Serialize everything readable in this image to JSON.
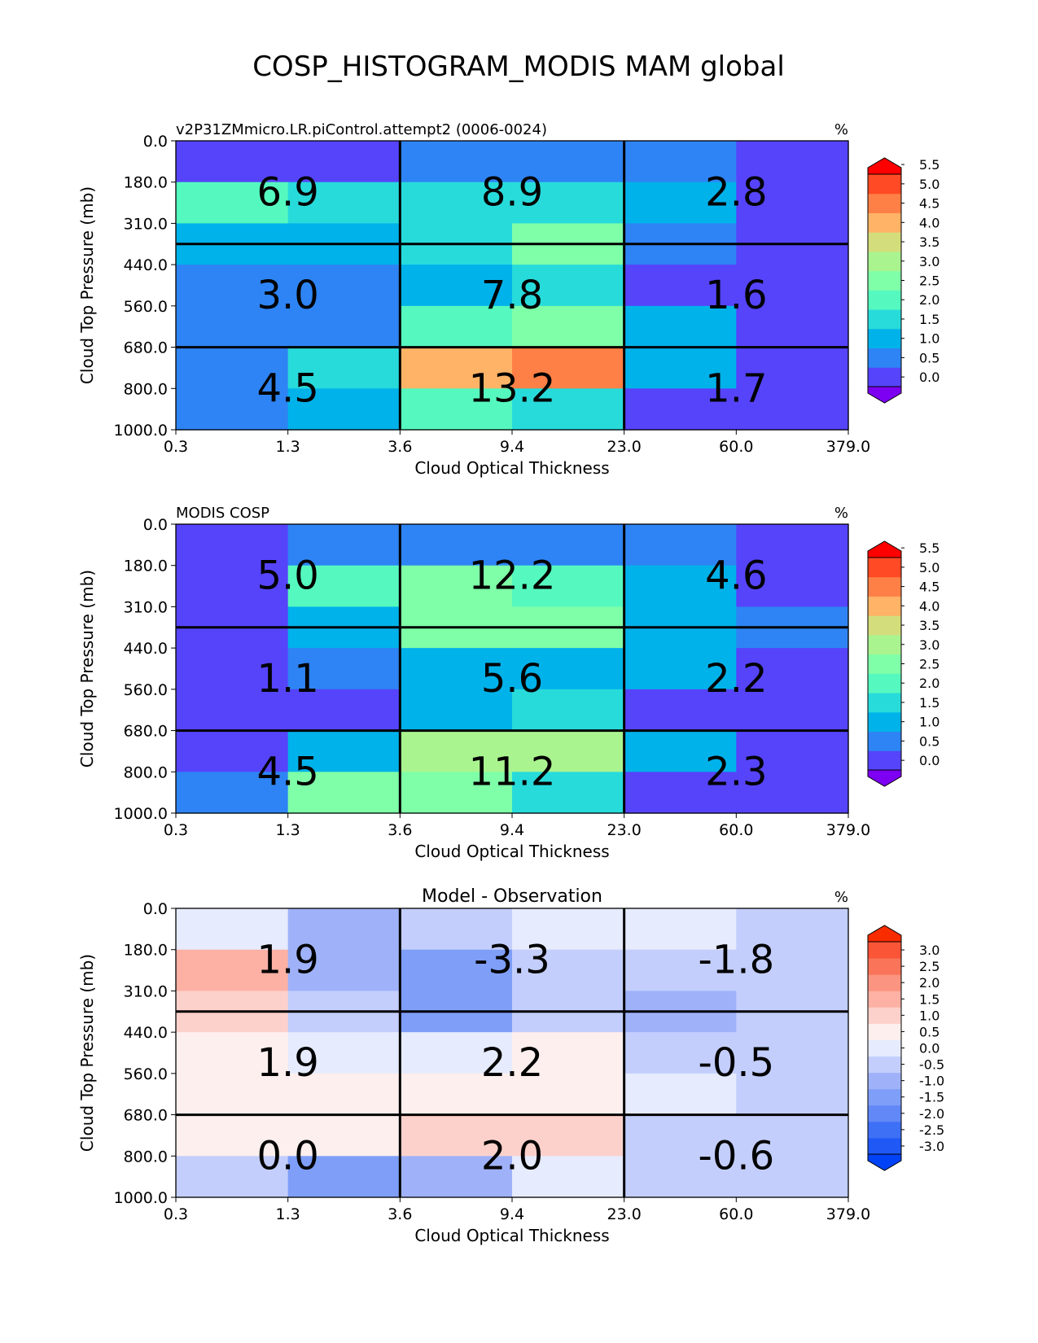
{
  "figure": {
    "title": "COSP_HISTOGRAM_MODIS MAM global"
  },
  "colors": {
    "abs_levels": [
      "#7d00f2",
      "#5644fb",
      "#2e84f4",
      "#00b2ea",
      "#28dbdb",
      "#55f9bf",
      "#7fffa8",
      "#aaf48f",
      "#d4dd7c",
      "#ffb366",
      "#ff8046",
      "#ff4a25",
      "#ff0000"
    ],
    "diff_levels": [
      "#0042f5",
      "#1f58f5",
      "#3e70f6",
      "#6288f7",
      "#7e9ef8",
      "#9fb2f9",
      "#c3cefc",
      "#e6ebfd",
      "#fdefed",
      "#fdd1cb",
      "#fcb1a4",
      "#fb9480",
      "#fa7459",
      "#f95536",
      "#f92c00"
    ]
  },
  "chart_data": [
    {
      "type": "heatmap",
      "name": "model",
      "title_left": "v2P31ZMmicro.LR.piControl.attempt2 (0006-0024)",
      "title_center": "",
      "units": "%",
      "xlabel": "Cloud Optical Thickness",
      "ylabel": "Cloud Top Pressure (mb)",
      "xticks": [
        "0.3",
        "1.3",
        "3.6",
        "9.4",
        "23.0",
        "60.0",
        "379.0"
      ],
      "yticks": [
        "0.0",
        "180.0",
        "310.0",
        "440.0",
        "560.0",
        "680.0",
        "800.0",
        "1000.0"
      ],
      "cells": [
        [
          0.3,
          0.3,
          0.7,
          0.7,
          0.7,
          0.2
        ],
        [
          2.1,
          1.9,
          1.9,
          1.9,
          1.4,
          0.3
        ],
        [
          1.4,
          1.4,
          1.9,
          2.6,
          0.8,
          0.3
        ],
        [
          0.8,
          0.8,
          1.4,
          1.9,
          0.2,
          0.2
        ],
        [
          0.8,
          0.8,
          2.1,
          2.6,
          1.4,
          0.2
        ],
        [
          0.8,
          1.9,
          4.1,
          4.9,
          1.4,
          0.2
        ],
        [
          0.8,
          1.4,
          2.1,
          1.9,
          0.3,
          0.2
        ]
      ],
      "totals": [
        [
          "6.9",
          "8.9",
          "2.8"
        ],
        [
          "3.0",
          "7.8",
          "1.6"
        ],
        [
          "4.5",
          "13.2",
          "1.7"
        ]
      ],
      "colorbar": {
        "palette": "abs",
        "labels": [
          "0.0",
          "0.5",
          "1.0",
          "1.5",
          "2.0",
          "2.5",
          "3.0",
          "3.5",
          "4.0",
          "4.5",
          "5.0",
          "5.5"
        ],
        "extend": "both"
      }
    },
    {
      "type": "heatmap",
      "name": "observation",
      "title_left": "MODIS COSP",
      "title_center": "",
      "units": "%",
      "xlabel": "Cloud Optical Thickness",
      "ylabel": "Cloud Top Pressure (mb)",
      "xticks": [
        "0.3",
        "1.3",
        "3.6",
        "9.4",
        "23.0",
        "60.0",
        "379.0"
      ],
      "yticks": [
        "0.0",
        "180.0",
        "310.0",
        "440.0",
        "560.0",
        "680.0",
        "800.0",
        "1000.0"
      ],
      "cells": [
        [
          0.2,
          0.7,
          0.7,
          0.7,
          0.7,
          0.2
        ],
        [
          0.2,
          2.1,
          2.6,
          2.1,
          1.4,
          0.2
        ],
        [
          0.2,
          1.4,
          2.6,
          2.6,
          1.4,
          0.7
        ],
        [
          0.2,
          0.7,
          1.4,
          1.4,
          1.4,
          0.2
        ],
        [
          0.2,
          0.2,
          1.4,
          1.9,
          0.2,
          0.2
        ],
        [
          0.2,
          1.4,
          3.1,
          3.1,
          1.4,
          0.2
        ],
        [
          0.8,
          2.6,
          2.6,
          1.9,
          0.2,
          0.2
        ]
      ],
      "totals": [
        [
          "5.0",
          "12.2",
          "4.6"
        ],
        [
          "1.1",
          "5.6",
          "2.2"
        ],
        [
          "4.5",
          "11.2",
          "2.3"
        ]
      ],
      "colorbar": {
        "palette": "abs",
        "labels": [
          "0.0",
          "0.5",
          "1.0",
          "1.5",
          "2.0",
          "2.5",
          "3.0",
          "3.5",
          "4.0",
          "4.5",
          "5.0",
          "5.5"
        ],
        "extend": "both"
      }
    },
    {
      "type": "heatmap",
      "name": "difference",
      "title_left": "",
      "title_center": "Model - Observation",
      "units": "%",
      "xlabel": "Cloud Optical Thickness",
      "ylabel": "Cloud Top Pressure (mb)",
      "xticks": [
        "0.3",
        "1.3",
        "3.6",
        "9.4",
        "23.0",
        "60.0",
        "379.0"
      ],
      "yticks": [
        "0.0",
        "180.0",
        "310.0",
        "440.0",
        "560.0",
        "680.0",
        "800.0",
        "1000.0"
      ],
      "cells": [
        [
          0.2,
          -0.7,
          -0.2,
          0.2,
          0.2,
          -0.2
        ],
        [
          1.9,
          -0.7,
          -1.2,
          -0.2,
          -0.2,
          -0.2
        ],
        [
          1.2,
          -0.2,
          -1.2,
          -0.2,
          -0.7,
          -0.2
        ],
        [
          0.7,
          0.2,
          0.2,
          0.7,
          -0.2,
          -0.2
        ],
        [
          0.7,
          0.7,
          0.7,
          0.7,
          0.2,
          -0.2
        ],
        [
          0.7,
          0.7,
          1.2,
          1.2,
          -0.2,
          -0.2
        ],
        [
          -0.2,
          -1.2,
          -0.7,
          0.2,
          -0.2,
          -0.2
        ]
      ],
      "totals": [
        [
          "1.9",
          "-3.3",
          "-1.8"
        ],
        [
          "1.9",
          "2.2",
          "-0.5"
        ],
        [
          "0.0",
          "2.0",
          "-0.6"
        ]
      ],
      "colorbar": {
        "palette": "diff",
        "labels": [
          "-3.0",
          "-2.5",
          "-2.0",
          "-1.5",
          "-1.0",
          "-0.5",
          "0.0",
          "0.5",
          "1.0",
          "1.5",
          "2.0",
          "2.5",
          "3.0"
        ],
        "extend": "both"
      }
    }
  ]
}
